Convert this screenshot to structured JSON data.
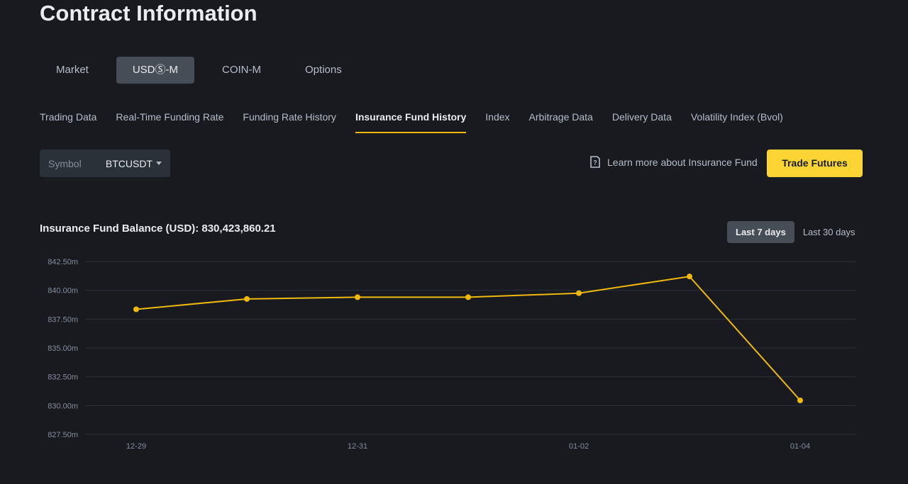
{
  "page_title": "Contract Information",
  "market_tabs": [
    {
      "label": "Market",
      "active": false
    },
    {
      "label": "USDⓈ-M",
      "active": true
    },
    {
      "label": "COIN-M",
      "active": false
    },
    {
      "label": "Options",
      "active": false
    }
  ],
  "sub_tabs": [
    {
      "label": "Trading Data",
      "active": false
    },
    {
      "label": "Real-Time Funding Rate",
      "active": false
    },
    {
      "label": "Funding Rate History",
      "active": false
    },
    {
      "label": "Insurance Fund History",
      "active": true
    },
    {
      "label": "Index",
      "active": false
    },
    {
      "label": "Arbitrage Data",
      "active": false
    },
    {
      "label": "Delivery Data",
      "active": false
    },
    {
      "label": "Volatility Index (Bvol)",
      "active": false
    }
  ],
  "symbol": {
    "label": "Symbol",
    "value": "BTCUSDT"
  },
  "learn_more": {
    "label": "Learn more about Insurance Fund",
    "icon": "document-question-icon"
  },
  "trade_button": {
    "label": "Trade Futures"
  },
  "balance": {
    "text": "Insurance Fund Balance (USD): 830,423,860.21"
  },
  "range_tabs": [
    {
      "label": "Last 7 days",
      "active": true
    },
    {
      "label": "Last 30 days",
      "active": false
    }
  ],
  "colors": {
    "accent": "#fcd535",
    "line": "#f0b90b",
    "background": "#181a20",
    "grid": "#2b3139"
  },
  "chart_data": {
    "type": "line",
    "x": [
      "12-29",
      "12-30",
      "12-31",
      "01-01",
      "01-02",
      "01-03",
      "01-04"
    ],
    "x_tick_labels": [
      "12-29",
      "12-31",
      "01-02",
      "01-04"
    ],
    "values": [
      838.35,
      839.25,
      839.4,
      839.4,
      839.75,
      841.2,
      830.45
    ],
    "ylim": [
      827.5,
      842.5
    ],
    "y_ticks": [
      842.5,
      840.0,
      837.5,
      835.0,
      832.5,
      830.0,
      827.5
    ],
    "y_tick_labels": [
      "842.50m",
      "840.00m",
      "837.50m",
      "835.00m",
      "832.50m",
      "830.00m",
      "827.50m"
    ],
    "grid": true,
    "legend": "none"
  }
}
